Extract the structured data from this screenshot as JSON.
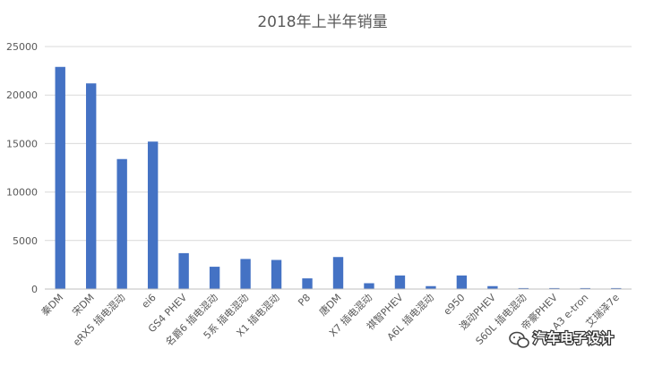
{
  "chart_data": {
    "type": "bar",
    "title": "2018年上半年销量",
    "xlabel": "",
    "ylabel": "",
    "ylim": [
      0,
      25000
    ],
    "yticks": [
      0,
      5000,
      10000,
      15000,
      20000,
      25000
    ],
    "grid": true,
    "legend": "none",
    "bar_color": "#4472c4",
    "categories": [
      "秦DM",
      "宋DM",
      "eRX5 插电混动",
      "ei6",
      "GS4 PHEV",
      "名爵6 插电混动",
      "5系 插电混动",
      "X1 插电混动",
      "P8",
      "唐DM",
      "X7 插电混动",
      "祺智PHEV",
      "A6L 插电混动",
      "e950",
      "逸动PHEV",
      "S60L 插电混动",
      "帝豪PHEV",
      "A3 e-tron",
      "艾瑞泽7e"
    ],
    "values": [
      22900,
      21200,
      13400,
      15200,
      3700,
      2300,
      3100,
      3000,
      1100,
      3300,
      600,
      1400,
      300,
      1400,
      300,
      100,
      100,
      100,
      100
    ]
  },
  "watermark": {
    "text": "汽车电子设计",
    "icon": "wechat-icon"
  }
}
